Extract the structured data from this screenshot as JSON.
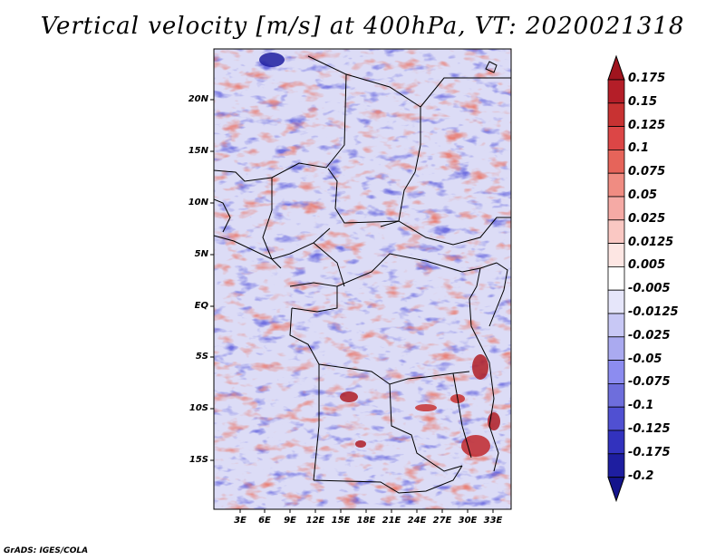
{
  "title": "Vertical velocity [m/s] at 400hPa, VT: 2020021318",
  "credit": "GrADS: IGES/COLA",
  "map": {
    "variable": "Vertical velocity",
    "units": "m/s",
    "level": "400hPa",
    "valid_time": "2020021318",
    "lat_labels": [
      "20N",
      "15N",
      "10N",
      "5N",
      "EQ",
      "5S",
      "10S",
      "15S"
    ],
    "lon_labels": [
      "3E",
      "6E",
      "9E",
      "12E",
      "15E",
      "18E",
      "21E",
      "24E",
      "27E",
      "30E",
      "33E"
    ]
  },
  "colorbar": {
    "labels": [
      "0.175",
      "0.15",
      "0.125",
      "0.1",
      "0.075",
      "0.05",
      "0.025",
      "0.0125",
      "0.005",
      "-0.005",
      "-0.0125",
      "-0.025",
      "-0.05",
      "-0.075",
      "-0.1",
      "-0.125",
      "-0.175",
      "-0.2"
    ],
    "colors": [
      "#a0141e",
      "#b41e28",
      "#c83232",
      "#dc4646",
      "#e6645a",
      "#f08c82",
      "#f5aaa5",
      "#fac8c3",
      "#fde6e3",
      "#ffffff",
      "#e6e6fa",
      "#c8c8f5",
      "#aaaaf0",
      "#8c8cf0",
      "#6e6edc",
      "#5050d2",
      "#3232be",
      "#1e1ea0",
      "#14148c"
    ]
  }
}
